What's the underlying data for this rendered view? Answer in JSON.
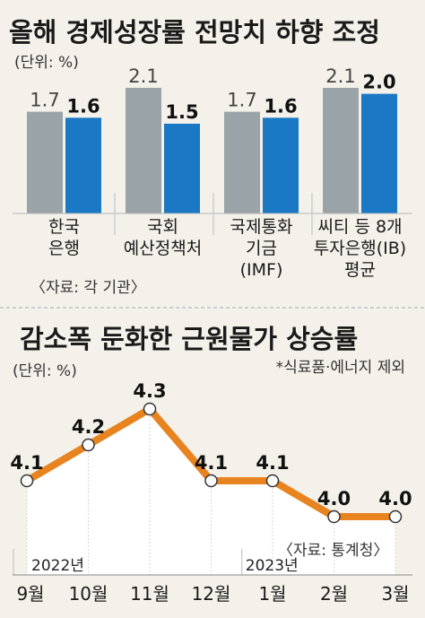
{
  "colors": {
    "background": "#f4f1ea",
    "gray_bar": "#9aa3a8",
    "blue_bar": "#1a78c4",
    "line": "#e88420",
    "divider": "#bfc7cd"
  },
  "chart_data": [
    {
      "type": "bar",
      "title": "올해 경제성장률 전망치 하향 조정",
      "unit_label": "(단위: %)",
      "categories": [
        [
          "한국",
          "은행"
        ],
        [
          "국회",
          "예산정책처"
        ],
        [
          "국제통화",
          "기금",
          "(IMF)"
        ],
        [
          "씨티 등 8개",
          "투자은행(IB)",
          "평균"
        ]
      ],
      "series": [
        {
          "color": "gray",
          "values": [
            1.7,
            2.1,
            1.7,
            2.1
          ]
        },
        {
          "color": "blue",
          "values": [
            1.6,
            1.5,
            1.6,
            2.0
          ]
        }
      ],
      "source": "〈자료: 각 기관〉"
    },
    {
      "type": "line",
      "title": "감소폭 둔화한 근원물가 상승률",
      "unit_label": "(단위: %)",
      "note": "*식료품·에너지 제외",
      "x": [
        "9월",
        "10월",
        "11월",
        "12월",
        "1월",
        "2월",
        "3월"
      ],
      "values": [
        4.1,
        4.2,
        4.3,
        4.1,
        4.1,
        4.0,
        4.0
      ],
      "year_labels": [
        "2022년",
        "2023년"
      ],
      "source": "〈자료: 통계청〉"
    }
  ]
}
